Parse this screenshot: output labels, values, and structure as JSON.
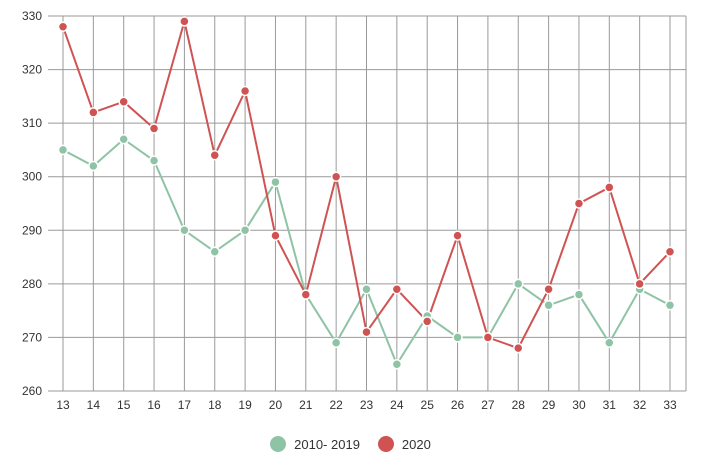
{
  "chart_data": {
    "type": "line",
    "x": [
      "13",
      "14",
      "15",
      "16",
      "17",
      "18",
      "19",
      "20",
      "21",
      "22",
      "23",
      "24",
      "25",
      "26",
      "27",
      "28",
      "29",
      "30",
      "31",
      "32",
      "33"
    ],
    "ylim": [
      260,
      330
    ],
    "yticks": [
      "260",
      "270",
      "280",
      "290",
      "300",
      "310",
      "320",
      "330"
    ],
    "grid": true,
    "legend_position": "bottom",
    "series": [
      {
        "name": "2010- 2019",
        "color": "#8fc3a6",
        "values": [
          305,
          302,
          307,
          303,
          290,
          286,
          290,
          299,
          278,
          269,
          279,
          265,
          274,
          270,
          270,
          280,
          276,
          278,
          269,
          279,
          276
        ]
      },
      {
        "name": "2020",
        "color": "#d05353",
        "values": [
          328,
          312,
          314,
          309,
          329,
          304,
          316,
          289,
          278,
          300,
          271,
          279,
          273,
          289,
          270,
          268,
          279,
          295,
          298,
          280,
          286
        ]
      }
    ]
  }
}
